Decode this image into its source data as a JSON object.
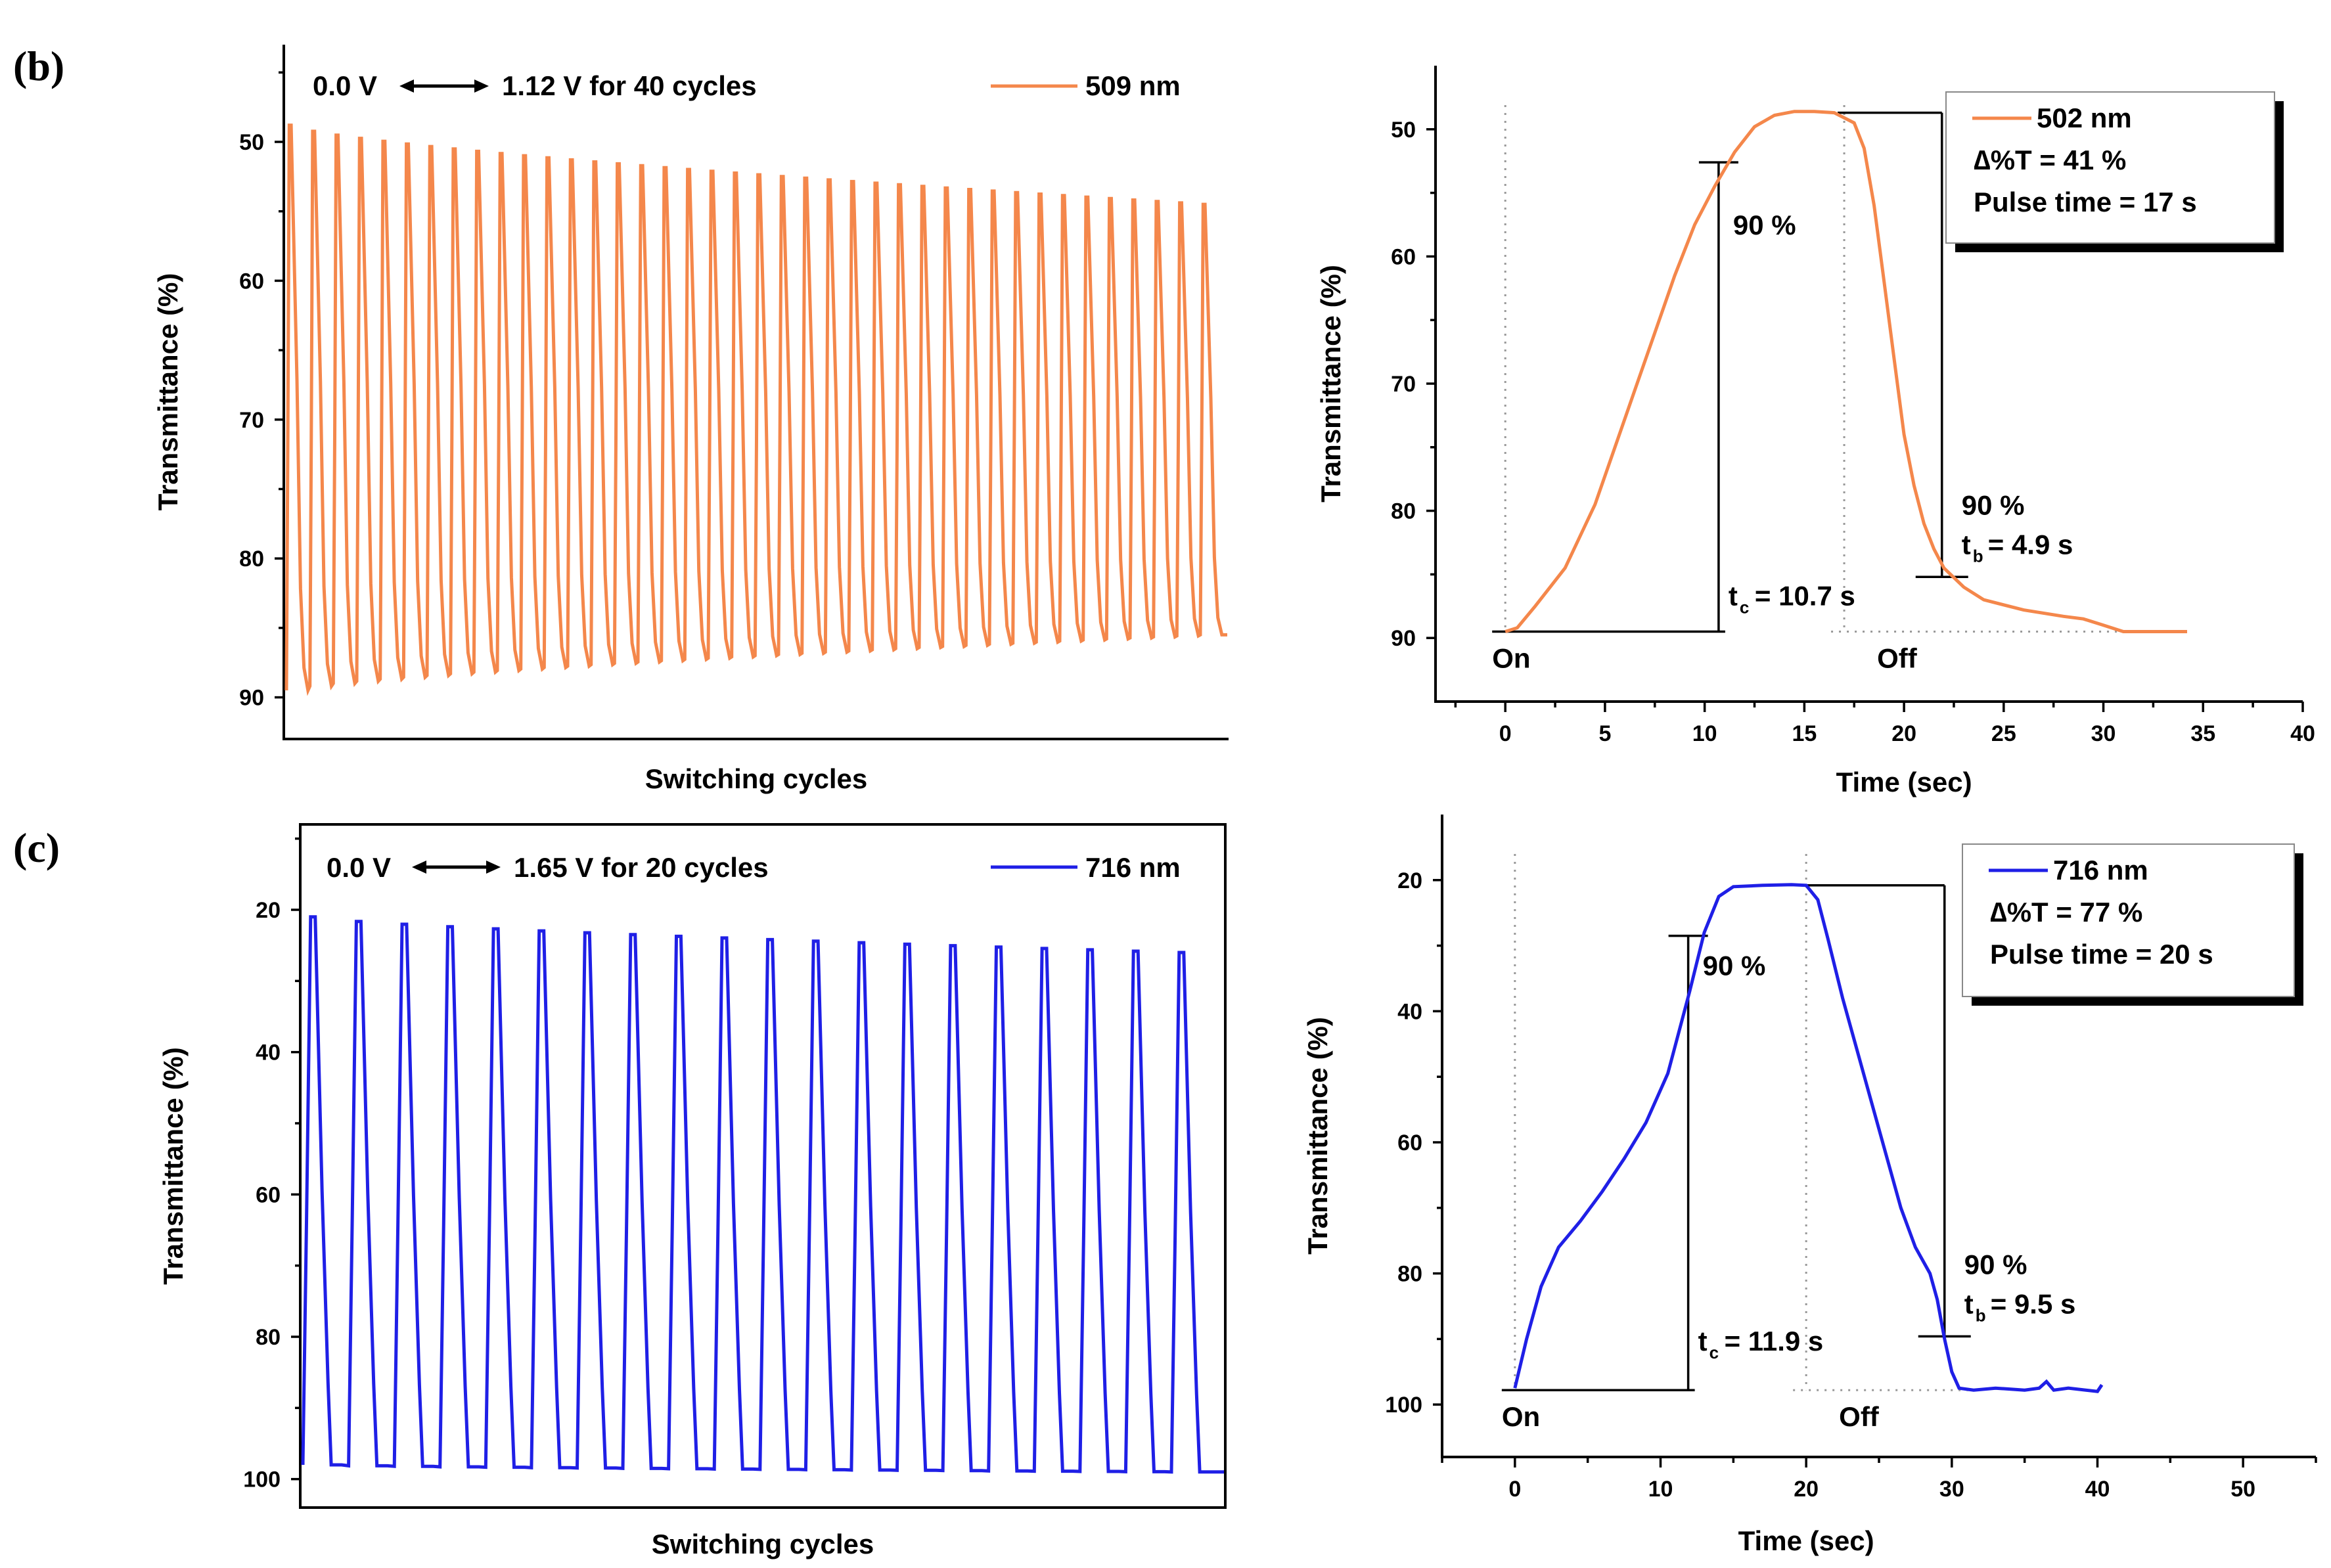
{
  "colors": {
    "orange": "#F4874B",
    "blue": "#1F1FE6",
    "axis": "#000000"
  },
  "panels": [
    {
      "label": "(b)"
    },
    {
      "label": "(c)"
    }
  ],
  "chart_data": [
    {
      "id": "b-cycles",
      "type": "line",
      "xlabel": "Switching cycles",
      "ylabel": "Transmittance (%)",
      "y_inverted": true,
      "ylim": [
        43,
        93
      ],
      "yticks": [
        50,
        60,
        70,
        80,
        90
      ],
      "color": "#F4874B",
      "annotation": {
        "left": "0.0 V",
        "right": "1.12 V for 40 cycles",
        "arrow": "double"
      },
      "legend": "509 nm",
      "cycles": 40,
      "series": [
        {
          "name": "peak (min T)",
          "first": 48.8,
          "last": 54.5
        },
        {
          "name": "trough (max T)",
          "first": 89.5,
          "last": 85.5
        }
      ]
    },
    {
      "id": "b-response",
      "type": "line",
      "xlabel": "Time (sec)",
      "ylabel": "Transmittance (%)",
      "y_inverted": true,
      "xlim": [
        -3.5,
        40
      ],
      "ylim": [
        45,
        95
      ],
      "xticks": [
        0,
        5,
        10,
        15,
        20,
        25,
        30,
        35,
        40
      ],
      "yticks": [
        50,
        60,
        70,
        80,
        90
      ],
      "color": "#F4874B",
      "legend": {
        "series": "502 nm",
        "delta": "∆%T = 41 %",
        "pulse": "Pulse time = 17 s"
      },
      "labels": {
        "on": "On",
        "off": "Off",
        "pct_c": "90 %",
        "pct_b": "90 %",
        "tc_t": "t",
        "tc_sub": "c",
        "tc_val": "= 10.7 s",
        "tb_t": "t",
        "tb_sub": "b",
        "tb_val": "= 4.9 s"
      },
      "points": [
        [
          0,
          89.5
        ],
        [
          0.6,
          89.2
        ],
        [
          1.5,
          87.5
        ],
        [
          3,
          84.5
        ],
        [
          4.5,
          79.5
        ],
        [
          5.5,
          75
        ],
        [
          6.5,
          70.5
        ],
        [
          7.5,
          66
        ],
        [
          8.5,
          61.5
        ],
        [
          9.5,
          57.5
        ],
        [
          10.5,
          54.5
        ],
        [
          11.5,
          51.8
        ],
        [
          12.5,
          49.8
        ],
        [
          13.5,
          48.9
        ],
        [
          14.5,
          48.6
        ],
        [
          15.5,
          48.6
        ],
        [
          16.5,
          48.7
        ],
        [
          17.5,
          49.5
        ],
        [
          18,
          51.5
        ],
        [
          18.5,
          56
        ],
        [
          19,
          62
        ],
        [
          19.5,
          68
        ],
        [
          20,
          74
        ],
        [
          20.5,
          78
        ],
        [
          21,
          81
        ],
        [
          21.5,
          83
        ],
        [
          22,
          84.5
        ],
        [
          23,
          86
        ],
        [
          24,
          87
        ],
        [
          26,
          87.8
        ],
        [
          28,
          88.3
        ],
        [
          29,
          88.5
        ],
        [
          30,
          89
        ],
        [
          31,
          89.5
        ],
        [
          34.2,
          89.5
        ]
      ],
      "markers": {
        "on_time": 0,
        "off_time": 17,
        "tc_time": 10.7,
        "tc_level": 52.6,
        "tb_time": 21.9,
        "tb_level": 85.2,
        "low_level": 89.5,
        "high_level": 48.7
      }
    },
    {
      "id": "c-cycles",
      "type": "line",
      "xlabel": "Switching cycles",
      "ylabel": "Transmittance (%)",
      "y_inverted": true,
      "ylim": [
        8,
        104
      ],
      "yticks": [
        20,
        40,
        60,
        80,
        100
      ],
      "color": "#1F1FE6",
      "annotation": {
        "left": "0.0 V",
        "right": "1.65 V for 20 cycles",
        "arrow": "double"
      },
      "legend": "716 nm",
      "cycles": 20,
      "series": [
        {
          "name": "peak (min T)",
          "first": 21,
          "last": 26
        },
        {
          "name": "trough (max T)",
          "first": 98,
          "last": 99
        }
      ]
    },
    {
      "id": "c-response",
      "type": "line",
      "xlabel": "Time (sec)",
      "ylabel": "Transmittance (%)",
      "y_inverted": true,
      "xlim": [
        -5,
        55
      ],
      "ylim": [
        10,
        108
      ],
      "xticks": [
        0,
        10,
        20,
        30,
        40,
        50
      ],
      "yticks": [
        20,
        40,
        60,
        80,
        100
      ],
      "color": "#1F1FE6",
      "legend": {
        "series": "716 nm",
        "delta": "∆%T = 77 %",
        "pulse": "Pulse time = 20 s"
      },
      "labels": {
        "on": "On",
        "off": "Off",
        "pct_c": "90 %",
        "pct_b": "90 %",
        "tc_t": "t",
        "tc_sub": "c",
        "tc_val": "= 11.9 s",
        "tb_t": "t",
        "tb_sub": "b",
        "tb_val": "= 9.5 s"
      },
      "points": [
        [
          0,
          97.5
        ],
        [
          0.8,
          90
        ],
        [
          1.8,
          82
        ],
        [
          3,
          76
        ],
        [
          4.5,
          72
        ],
        [
          6,
          67.5
        ],
        [
          7.5,
          62.5
        ],
        [
          9,
          57
        ],
        [
          10.5,
          49.5
        ],
        [
          12,
          37
        ],
        [
          13,
          28
        ],
        [
          14,
          22.5
        ],
        [
          15,
          21
        ],
        [
          17,
          20.8
        ],
        [
          19,
          20.7
        ],
        [
          20,
          20.8
        ],
        [
          20.8,
          23
        ],
        [
          21.5,
          29
        ],
        [
          22.5,
          38
        ],
        [
          23.5,
          46
        ],
        [
          24.5,
          54
        ],
        [
          25.5,
          62
        ],
        [
          26.5,
          70
        ],
        [
          27.5,
          76
        ],
        [
          28.5,
          80
        ],
        [
          29,
          84
        ],
        [
          29.5,
          90
        ],
        [
          30,
          95
        ],
        [
          30.5,
          97.5
        ],
        [
          31.5,
          97.8
        ],
        [
          33,
          97.5
        ],
        [
          35,
          97.8
        ],
        [
          36,
          97.5
        ],
        [
          36.5,
          96.5
        ],
        [
          37,
          97.8
        ],
        [
          38,
          97.5
        ],
        [
          40,
          98
        ],
        [
          40.3,
          97
        ]
      ],
      "markers": {
        "on_time": 0,
        "off_time": 20,
        "tc_time": 11.9,
        "tc_level": 28.5,
        "tb_time": 29.5,
        "tb_level": 89.6,
        "low_level": 97.8,
        "high_level": 20.8
      }
    }
  ]
}
